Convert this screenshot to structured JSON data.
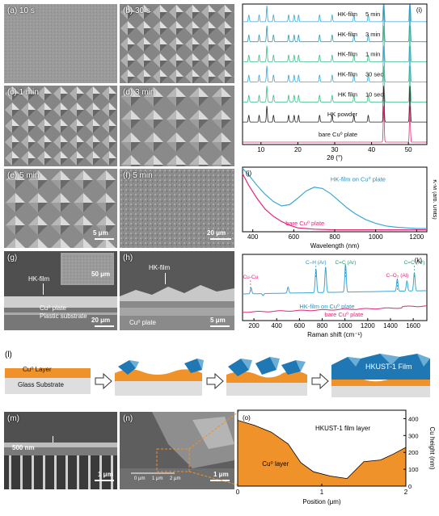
{
  "panels": {
    "a": {
      "label": "(a) 10 s"
    },
    "b": {
      "label": "(b) 30 s"
    },
    "c": {
      "label": "(c) 1 min"
    },
    "d": {
      "label": "(d) 3 min"
    },
    "e": {
      "label": "(e) 5 min",
      "scale": "5 μm"
    },
    "f": {
      "label": "(f) 5 min",
      "scale": "20 μm"
    },
    "g": {
      "label": "(g)",
      "film": "HK-film",
      "inset_scale": "50 μm",
      "cu": "Cu⁰ plate",
      "plastic": "Plastic substrate",
      "scale": "20 μm"
    },
    "h": {
      "label": "(h)",
      "film": "HK-film",
      "cu": "Cu⁰ plate",
      "scale": "5 μm"
    },
    "m": {
      "label": "(m)",
      "thickness": "500 nm",
      "scale": "1 μm"
    },
    "n": {
      "label": "(n)",
      "ruler": [
        "0 μm",
        "1 μm",
        "2 μm"
      ],
      "scale": "1 μm"
    },
    "l": {
      "label": "(l)",
      "cu_layer": "Cu⁰ Layer",
      "glass": "Glass Substrate",
      "film": "HKUST-1 Film"
    }
  },
  "chart_data": [
    {
      "panel": "(i)",
      "type": "line",
      "xlabel": "2θ (°)",
      "xlim": [
        5,
        55
      ],
      "xticks": [
        10,
        20,
        30,
        40,
        50
      ],
      "peaks_x": [
        6.7,
        9.5,
        11.6,
        13.4,
        17.5,
        19.0,
        20.2,
        25.9,
        29.3,
        35.2,
        39.1,
        43.3,
        50.4
      ],
      "series": [
        {
          "name": "HK-film 5 min",
          "color": "#3aa7d6"
        },
        {
          "name": "HK-film 3 min",
          "color": "#2a9ab8"
        },
        {
          "name": "HK-film 1 min",
          "color": "#3dbd8c"
        },
        {
          "name": "HK film 30 sec",
          "color": "#3aa7d6"
        },
        {
          "name": "HK film 10 sec",
          "color": "#3dbd8c"
        },
        {
          "name": "HK powder",
          "color": "#222222"
        },
        {
          "name": "bare Cu⁰ plate",
          "color": "#e0287a"
        }
      ],
      "labels": [
        "HK-film",
        "5 min",
        "HK-film",
        "3 min",
        "HK-film",
        "1 min",
        "HK-film",
        "30 sec",
        "HK film",
        "10 sec",
        "HK powder",
        "bare Cu⁰ plate"
      ]
    },
    {
      "panel": "(j)",
      "type": "line",
      "xlabel": "Wavelength (nm)",
      "ylabel": "K-M (arb. Units)",
      "xlim": [
        350,
        1250
      ],
      "xticks": [
        400,
        600,
        800,
        1000,
        1200
      ],
      "series": [
        {
          "name": "HK-film on Cu⁰ plate",
          "color": "#3aa7d6",
          "x": [
            350,
            380,
            420,
            460,
            500,
            540,
            580,
            620,
            660,
            700,
            740,
            780,
            820,
            860,
            900,
            950,
            1000,
            1050,
            1100,
            1150,
            1200,
            1250
          ],
          "y": [
            0.98,
            0.88,
            0.72,
            0.58,
            0.47,
            0.4,
            0.42,
            0.52,
            0.63,
            0.69,
            0.67,
            0.59,
            0.48,
            0.37,
            0.28,
            0.19,
            0.13,
            0.09,
            0.07,
            0.06,
            0.05,
            0.05
          ]
        },
        {
          "name": "bare Cu⁰ plate",
          "color": "#e0287a",
          "x": [
            350,
            380,
            420,
            460,
            500,
            540,
            580,
            620,
            700,
            800,
            900,
            1000,
            1100,
            1200,
            1250
          ],
          "y": [
            0.9,
            0.72,
            0.52,
            0.35,
            0.24,
            0.16,
            0.1,
            0.06,
            0.04,
            0.03,
            0.03,
            0.03,
            0.03,
            0.03,
            0.03
          ]
        }
      ]
    },
    {
      "panel": "(k)",
      "type": "line",
      "xlabel": "Raman shift (cm⁻¹)",
      "xlim": [
        100,
        1720
      ],
      "xticks": [
        200,
        400,
        600,
        800,
        1000,
        1200,
        1400,
        1600
      ],
      "annotations": [
        {
          "text": "C–H (Ar)",
          "x": 745
        },
        {
          "text": "C=C (Ar)",
          "x": 1005
        },
        {
          "text": "C–O₂ (Al)",
          "x": 1460
        },
        {
          "text": "C=C (Ar)",
          "x": 1610
        },
        {
          "text": "Cu-Cu",
          "x": 170
        }
      ],
      "series": [
        {
          "name": "HK-film on Cu⁰ plate",
          "color": "#3aa7d6",
          "peaks": [
            [
              175,
              0.45
            ],
            [
              280,
              0.25
            ],
            [
              500,
              0.45
            ],
            [
              745,
              0.9
            ],
            [
              830,
              0.95
            ],
            [
              1005,
              1.0
            ],
            [
              1460,
              0.6
            ],
            [
              1545,
              0.55
            ],
            [
              1610,
              0.75
            ]
          ]
        },
        {
          "name": "bare Cu⁰ plate",
          "color": "#e0287a"
        }
      ]
    },
    {
      "panel": "(o)",
      "type": "area",
      "xlabel": "Position (μm)",
      "ylabel": "Cu height (nm)",
      "xlim": [
        0,
        2
      ],
      "ylim": [
        0,
        450
      ],
      "xticks": [
        0,
        1,
        2
      ],
      "yticks": [
        0,
        100,
        200,
        300,
        400
      ],
      "x": [
        0,
        0.2,
        0.4,
        0.6,
        0.75,
        0.9,
        1.1,
        1.3,
        1.5,
        1.7,
        1.85,
        2.0
      ],
      "y": [
        390,
        360,
        320,
        250,
        140,
        85,
        60,
        45,
        145,
        155,
        190,
        230
      ],
      "labels": {
        "film": "HKUST-1 film layer",
        "cu": "Cu⁰ layer"
      }
    }
  ]
}
